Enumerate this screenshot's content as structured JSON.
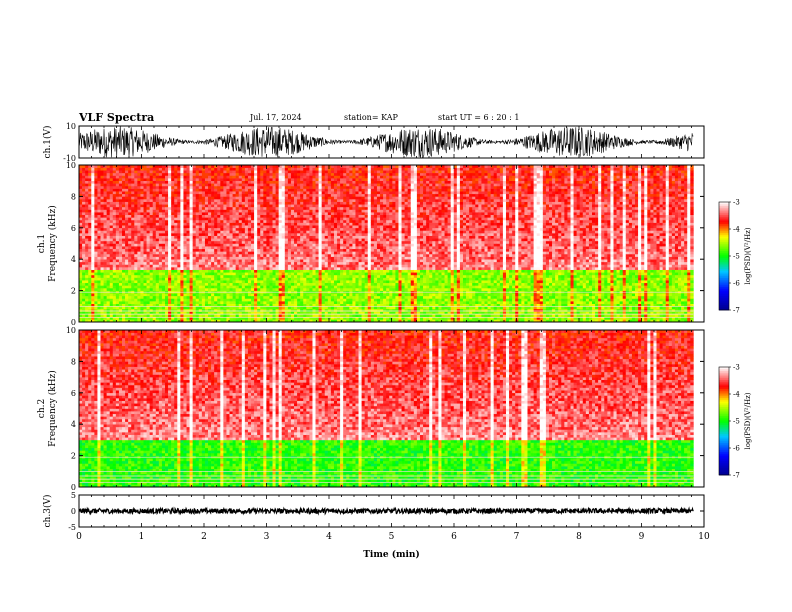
{
  "header": {
    "title": "VLF Spectra",
    "date": "Jul. 17, 2024",
    "station": "station= KAP",
    "start": "start  UT =  6 : 20 : 1"
  },
  "chart_data": [
    {
      "type": "line",
      "title": "",
      "ylabel": "ch.1(V)",
      "xlim": [
        0,
        10
      ],
      "ylim": [
        -10,
        10
      ],
      "yticks": [
        -10,
        10
      ],
      "description_values": "dense oscillating waveform filling most of the range, mostly between about -10 and 10 V",
      "x": [
        0,
        10
      ],
      "values_range": [
        -10,
        10
      ]
    },
    {
      "type": "heatmap",
      "ylabel": "ch.1\nFrequency (kHz)",
      "xlim": [
        0,
        10
      ],
      "ylim": [
        0,
        10
      ],
      "yticks": [
        0,
        2,
        4,
        6,
        8,
        10
      ],
      "colorbar": {
        "label": "log(PSD)(V²/Hz)",
        "ticks": [
          -3,
          -4,
          -5,
          -6,
          -7
        ],
        "range": [
          -7,
          -3
        ]
      },
      "bands_kHz": [
        {
          "from": 0,
          "to": 3.4,
          "level": -4.6
        },
        {
          "from": 3.4,
          "to": 10,
          "level": -3.6
        }
      ]
    },
    {
      "type": "heatmap",
      "ylabel": "ch.2\nFrequency (kHz)",
      "xlim": [
        0,
        10
      ],
      "ylim": [
        0,
        10
      ],
      "yticks": [
        0,
        2,
        4,
        6,
        8,
        10
      ],
      "colorbar": {
        "label": "log(PSD)(V²/Hz)",
        "ticks": [
          -3,
          -4,
          -5,
          -6,
          -7
        ],
        "range": [
          -7,
          -3
        ]
      },
      "bands_kHz": [
        {
          "from": 0,
          "to": 3.0,
          "level": -4.9
        },
        {
          "from": 3.0,
          "to": 10,
          "level": -3.6
        }
      ]
    },
    {
      "type": "line",
      "ylabel": "ch.3(V)",
      "xlabel": "Time (min)",
      "xlim": [
        0,
        10
      ],
      "ylim": [
        -5,
        5
      ],
      "yticks": [
        -5,
        0,
        5
      ],
      "xticks": [
        0,
        1,
        2,
        3,
        4,
        5,
        6,
        7,
        8,
        9,
        10
      ],
      "values_range": [
        -0.8,
        0.8
      ]
    }
  ],
  "colors": {
    "high": "#ff0000",
    "mid": "#ffff00",
    "low": "#00ff00",
    "lowest": "#0000ff",
    "bg": "#ffffff"
  }
}
